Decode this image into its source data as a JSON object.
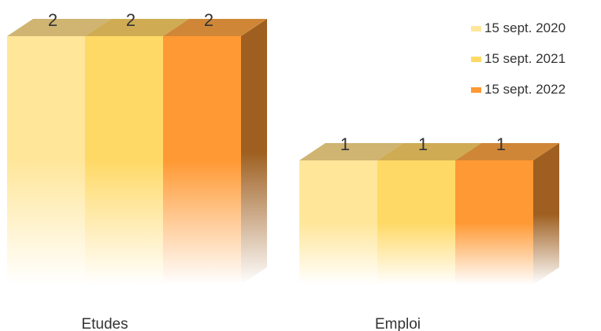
{
  "chart_data": {
    "type": "bar",
    "categories": [
      "Etudes",
      "Emploi"
    ],
    "series": [
      {
        "name": "15 sept. 2020",
        "values": [
          2,
          1
        ],
        "color": "#FFE699"
      },
      {
        "name": "15 sept. 2021",
        "values": [
          2,
          1
        ],
        "color": "#FFD966"
      },
      {
        "name": "15 sept. 2022",
        "values": [
          2,
          1
        ],
        "color": "#FF9933"
      }
    ],
    "data_labels": true,
    "style": "3d-column",
    "ylim": [
      0,
      2
    ],
    "grid": false,
    "legend_position": "top-right"
  }
}
